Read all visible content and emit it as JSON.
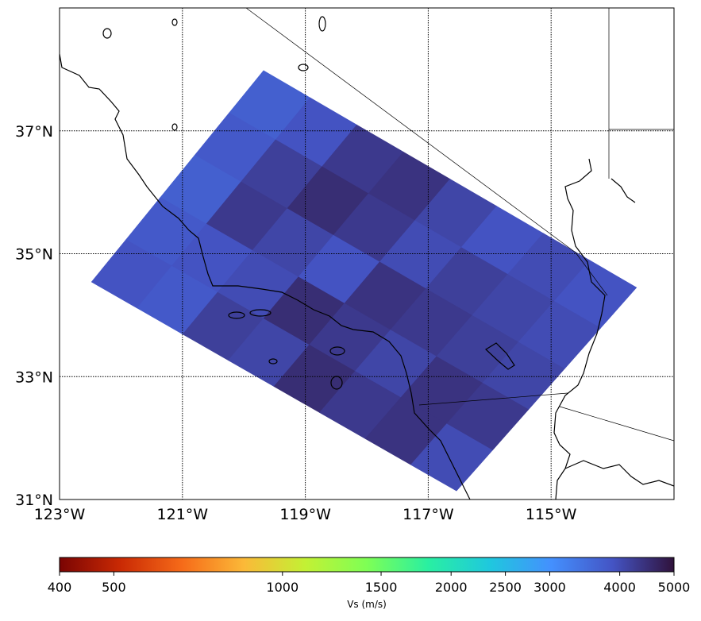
{
  "chart_data": {
    "type": "map",
    "xlim": [
      -123,
      -113
    ],
    "ylim": [
      31,
      39
    ],
    "xticks": [
      {
        "value": -123,
        "label": "123°W"
      },
      {
        "value": -121,
        "label": "121°W"
      },
      {
        "value": -119,
        "label": "119°W"
      },
      {
        "value": -117,
        "label": "117°W"
      },
      {
        "value": -115,
        "label": "115°W"
      }
    ],
    "yticks": [
      {
        "value": 31,
        "label": "31°N"
      },
      {
        "value": 33,
        "label": "33°N"
      },
      {
        "value": 35,
        "label": "35°N"
      },
      {
        "value": 37,
        "label": "37°N"
      }
    ],
    "grid": true,
    "domain_corners": [
      [
        -119.68,
        37.98
      ],
      [
        -113.61,
        34.45
      ],
      [
        -116.54,
        31.14
      ],
      [
        -122.48,
        34.54
      ]
    ],
    "values": [
      [
        3700,
        3900,
        4300,
        4400,
        4100,
        3900,
        4000,
        3900
      ],
      [
        3800,
        4200,
        4500,
        4300,
        4000,
        4200,
        4100,
        4000
      ],
      [
        3700,
        4300,
        4100,
        3900,
        4400,
        4300,
        4200,
        4100
      ],
      [
        3800,
        3900,
        4000,
        4500,
        4300,
        4100,
        4400,
        4300
      ],
      [
        3900,
        3800,
        4200,
        4100,
        4500,
        4300,
        4400,
        4000
      ]
    ],
    "colorbar": {
      "label": "Vs (m/s)",
      "log": true,
      "clim": [
        400,
        5000
      ],
      "ticks": [
        400,
        500,
        1000,
        1500,
        2000,
        2500,
        3000,
        4000,
        5000
      ],
      "colormap": [
        "#7a0403",
        "#ca2a04",
        "#f66b19",
        "#fbb938",
        "#c3f134",
        "#7eff55",
        "#29efa2",
        "#1fc8de",
        "#4490fe",
        "#4454c4",
        "#30123b"
      ]
    }
  }
}
